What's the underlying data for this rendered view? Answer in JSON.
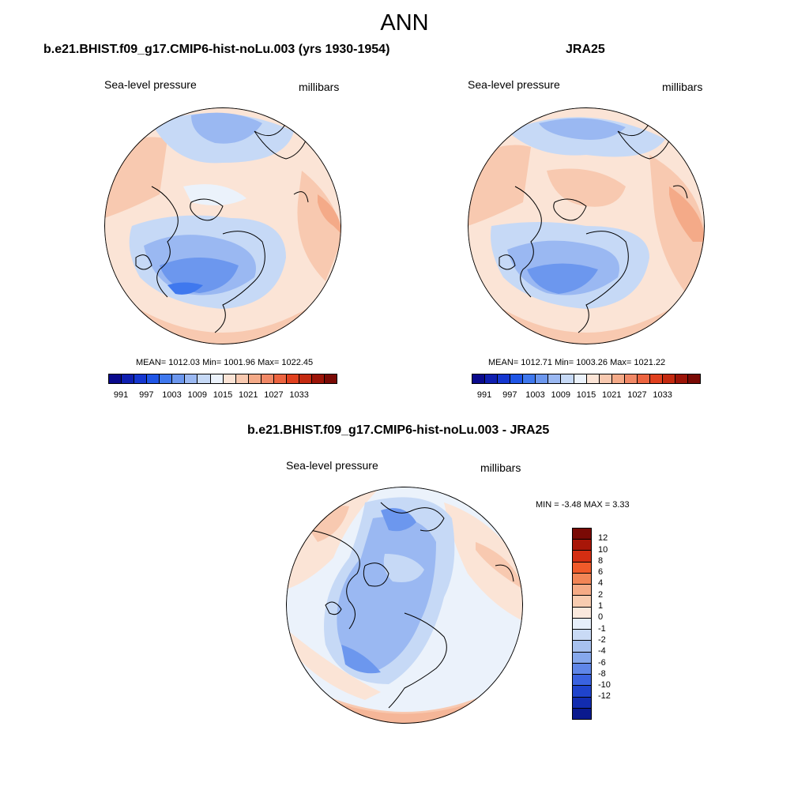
{
  "figure": {
    "title": "ANN"
  },
  "panels": {
    "model": {
      "title": "b.e21.BHIST.f09_g17.CMIP6-hist-noLu.003 (yrs 1930-1954)",
      "variable": "Sea-level pressure",
      "units": "millibars",
      "stats": "MEAN= 1012.03  Min= 1001.96  Max= 1022.45",
      "mean": 1012.03,
      "min": 1001.96,
      "max": 1022.45
    },
    "obs": {
      "title": "JRA25",
      "variable": "Sea-level pressure",
      "units": "millibars",
      "stats": "MEAN= 1012.71  Min= 1003.26  Max= 1021.22",
      "mean": 1012.71,
      "min": 1003.26,
      "max": 1021.22
    },
    "diff": {
      "title": "b.e21.BHIST.f09_g17.CMIP6-hist-noLu.003 - JRA25",
      "variable": "Sea-level pressure",
      "units": "millibars",
      "stats": "MIN =  -3.48 MAX =   3.33",
      "min": -3.48,
      "max": 3.33
    }
  },
  "colorbar_abs": {
    "colors": [
      "#0a0a8c",
      "#0f1fb0",
      "#1537d0",
      "#1f55e6",
      "#3f78ee",
      "#6c97ee",
      "#9ab8f2",
      "#c6d9f6",
      "#ebf2fb",
      "#fbe4d6",
      "#f8c9b0",
      "#f4aa88",
      "#f08866",
      "#ec6440",
      "#e0401e",
      "#c42a10",
      "#9c1408",
      "#7a0a05"
    ],
    "tick_labels": [
      "991",
      "997",
      "1003",
      "1009",
      "1015",
      "1021",
      "1027",
      "1033"
    ]
  },
  "colorbar_diff": {
    "colors": [
      "#7a0a05",
      "#a81608",
      "#d42e12",
      "#f05a2a",
      "#f28556",
      "#f5ab86",
      "#f8ccb0",
      "#fbe9dd",
      "#e6eefa",
      "#c9daf5",
      "#a7c1ef",
      "#86a8ec",
      "#5f86e8",
      "#3a62e0",
      "#1f43cc",
      "#122cb0",
      "#0a1a8e"
    ],
    "tick_labels": [
      "12",
      "10",
      "8",
      "6",
      "4",
      "2",
      "1",
      "0",
      "-1",
      "-2",
      "-4",
      "-6",
      "-8",
      "-10",
      "-12"
    ]
  },
  "map_colors": {
    "ocean_base": "#fbe4d6",
    "deep_blue": "#3f78ee",
    "mid_blue": "#6c97ee",
    "light_blue": "#9ab8f2",
    "pale_blue": "#c6d9f6",
    "whiteish": "#ebf2fb",
    "warm": "#f8c9b0",
    "warmer": "#f4aa88"
  }
}
